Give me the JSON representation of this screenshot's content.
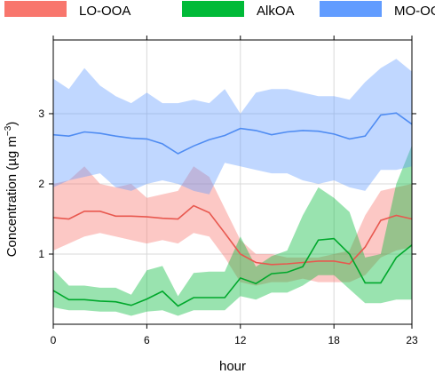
{
  "chart_data": {
    "type": "line",
    "xlabel": "hour",
    "ylabel": "Concentration (µg m",
    "ylabel_sup": "−3",
    "ylabel_close": ")",
    "xlim": [
      0,
      23
    ],
    "ylim": [
      0,
      4.05
    ],
    "xticks": [
      0,
      6,
      12,
      18,
      23
    ],
    "xtick_labels": [
      "0",
      "6",
      "12",
      "18",
      "23"
    ],
    "yticks": [
      1,
      2,
      3
    ],
    "ytick_labels": [
      "1",
      "2",
      "3"
    ],
    "grid": true,
    "legend_position": "top",
    "x": [
      0,
      1,
      2,
      3,
      4,
      5,
      6,
      7,
      8,
      9,
      10,
      11,
      12,
      13,
      14,
      15,
      16,
      17,
      18,
      19,
      20,
      21,
      22,
      23
    ],
    "series": [
      {
        "name": "LO-OOA",
        "fill_color": "#f8766d",
        "line_color": "#e8584f",
        "values": [
          1.52,
          1.5,
          1.61,
          1.61,
          1.54,
          1.54,
          1.53,
          1.51,
          1.5,
          1.69,
          1.59,
          1.3,
          1.0,
          0.88,
          0.85,
          0.86,
          0.88,
          0.9,
          0.9,
          0.86,
          1.1,
          1.48,
          1.55,
          1.5
        ],
        "lower": [
          1.05,
          1.15,
          1.25,
          1.3,
          1.25,
          1.2,
          1.15,
          1.2,
          1.15,
          1.3,
          1.25,
          0.95,
          0.6,
          0.55,
          0.6,
          0.6,
          0.65,
          0.6,
          0.6,
          0.6,
          0.7,
          0.95,
          1.05,
          1.1
        ],
        "upper": [
          2.0,
          2.05,
          2.25,
          2.0,
          1.95,
          2.0,
          1.8,
          1.85,
          1.9,
          2.25,
          2.1,
          1.65,
          1.2,
          1.0,
          1.0,
          0.95,
          0.95,
          0.95,
          1.0,
          1.05,
          1.55,
          1.9,
          1.95,
          2.0
        ]
      },
      {
        "name": "AlkOA",
        "fill_color": "#00ba38",
        "line_color": "#00a82c",
        "values": [
          0.48,
          0.35,
          0.35,
          0.33,
          0.32,
          0.27,
          0.36,
          0.47,
          0.26,
          0.38,
          0.38,
          0.38,
          0.66,
          0.58,
          0.72,
          0.74,
          0.82,
          1.2,
          1.22,
          1.0,
          0.59,
          0.59,
          0.95,
          1.13
        ],
        "lower": [
          0.24,
          0.2,
          0.2,
          0.18,
          0.18,
          0.12,
          0.18,
          0.2,
          0.12,
          0.2,
          0.2,
          0.2,
          0.4,
          0.35,
          0.45,
          0.45,
          0.55,
          0.7,
          0.7,
          0.5,
          0.3,
          0.3,
          0.35,
          0.35
        ],
        "upper": [
          0.78,
          0.55,
          0.55,
          0.52,
          0.52,
          0.42,
          0.77,
          0.83,
          0.4,
          0.73,
          0.75,
          0.75,
          1.25,
          0.82,
          0.97,
          1.05,
          1.55,
          1.95,
          1.8,
          1.6,
          0.95,
          1.0,
          2.0,
          2.55
        ]
      },
      {
        "name": "MO-OOA",
        "fill_color": "#619cff",
        "line_color": "#4f8cf2",
        "values": [
          2.7,
          2.68,
          2.74,
          2.72,
          2.68,
          2.65,
          2.64,
          2.57,
          2.43,
          2.54,
          2.63,
          2.69,
          2.79,
          2.76,
          2.7,
          2.74,
          2.76,
          2.75,
          2.71,
          2.64,
          2.68,
          2.98,
          3.01,
          2.85
        ],
        "lower": [
          1.95,
          2.05,
          2.1,
          2.15,
          1.95,
          1.9,
          2.0,
          2.05,
          2.0,
          1.9,
          1.85,
          2.3,
          2.25,
          2.2,
          2.15,
          2.15,
          2.05,
          2.0,
          2.05,
          1.95,
          1.9,
          2.2,
          2.2,
          2.25
        ],
        "upper": [
          3.5,
          3.35,
          3.65,
          3.4,
          3.25,
          3.15,
          3.3,
          3.15,
          3.15,
          3.2,
          3.15,
          3.35,
          3.0,
          3.3,
          3.35,
          3.35,
          3.3,
          3.25,
          3.25,
          3.2,
          3.45,
          3.65,
          3.78,
          3.6
        ]
      }
    ]
  }
}
